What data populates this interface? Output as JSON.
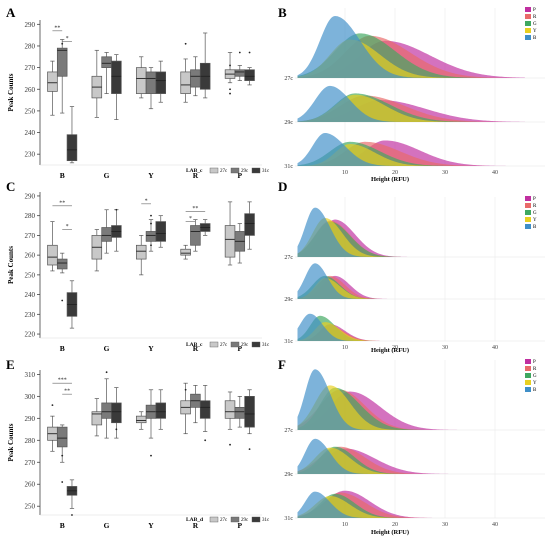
{
  "colors": {
    "box_27c": "#c8c8c8",
    "box_29c": "#7a7a7a",
    "box_31c": "#3a3a3a",
    "P": "#c02fa0",
    "R": "#e96a6a",
    "G": "#3fa860",
    "Y": "#e9d020",
    "B": "#3f8fc8"
  },
  "chart_data": [
    {
      "panel": "A",
      "type": "box",
      "ylabel": "Peak Counts",
      "ylim": [
        225,
        292
      ],
      "yticks": [
        230,
        240,
        250,
        260,
        270,
        280,
        290
      ],
      "categories": [
        "B",
        "G",
        "Y",
        "R",
        "P"
      ],
      "legend_title": "LAB_c",
      "series_names": [
        "27c",
        "29c",
        "31c"
      ],
      "boxes": [
        [
          {
            "min": 248,
            "q1": 259,
            "med": 263,
            "q3": 268,
            "max": 273
          },
          {
            "min": 249,
            "q1": 266,
            "med": 278,
            "q3": 279,
            "max": 283
          },
          {
            "min": 226,
            "q1": 227,
            "med": 232,
            "q3": 239,
            "max": 252
          }
        ],
        [
          {
            "min": 247,
            "q1": 256,
            "med": 261,
            "q3": 266,
            "max": 278
          },
          {
            "min": 258,
            "q1": 270,
            "med": 272,
            "q3": 275,
            "max": 277
          },
          {
            "min": 246,
            "q1": 258,
            "med": 266,
            "q3": 273,
            "max": 276
          }
        ],
        [
          {
            "min": 256,
            "q1": 258,
            "med": 265,
            "q3": 270,
            "max": 275
          },
          {
            "min": 251,
            "q1": 258,
            "med": 265,
            "q3": 268,
            "max": 270
          },
          {
            "min": 254,
            "q1": 258,
            "med": 264,
            "q3": 268,
            "max": 273
          }
        ],
        [
          {
            "min": 254,
            "q1": 258,
            "med": 262,
            "q3": 268,
            "max": 274
          },
          {
            "min": 257,
            "q1": 261,
            "med": 266,
            "q3": 269,
            "max": 275
          },
          {
            "min": 256,
            "q1": 260,
            "med": 266,
            "q3": 272,
            "max": 286
          }
        ],
        [
          {
            "min": 263,
            "q1": 265,
            "med": 267,
            "q3": 269,
            "max": 277
          },
          {
            "min": 264,
            "q1": 266,
            "med": 268,
            "q3": 269,
            "max": 271
          },
          {
            "min": 262,
            "q1": 264,
            "med": 266,
            "q3": 269,
            "max": 270
          }
        ]
      ],
      "outliers": [
        {
          "cat": 0,
          "s": 1,
          "y": 281
        },
        {
          "cat": 3,
          "s": 0,
          "y": 281
        },
        {
          "cat": 4,
          "s": 0,
          "y": 260
        },
        {
          "cat": 4,
          "s": 0,
          "y": 258
        },
        {
          "cat": 4,
          "s": 0,
          "y": 271
        },
        {
          "cat": 4,
          "s": 1,
          "y": 277
        },
        {
          "cat": 4,
          "s": 2,
          "y": 277
        }
      ],
      "brackets": [
        {
          "cat": 0,
          "from": 0,
          "to": 1,
          "y": 287,
          "label": "**"
        },
        {
          "cat": 0,
          "from": 1,
          "to": 2,
          "y": 282,
          "label": "*"
        }
      ]
    },
    {
      "panel": "C",
      "type": "box",
      "ylabel": "Peak Counts",
      "ylim": [
        218,
        292
      ],
      "yticks": [
        220,
        230,
        240,
        250,
        260,
        270,
        280,
        290
      ],
      "categories": [
        "B",
        "G",
        "Y",
        "R",
        "P"
      ],
      "legend_title": "LAB_c",
      "series_names": [
        "27c",
        "29c",
        "31c"
      ],
      "boxes": [
        [
          {
            "min": 252,
            "q1": 255,
            "med": 259,
            "q3": 265,
            "max": 277
          },
          {
            "min": 251,
            "q1": 253,
            "med": 256,
            "q3": 258,
            "max": 261
          },
          {
            "min": 223,
            "q1": 229,
            "med": 235,
            "q3": 241,
            "max": 247
          }
        ],
        [
          {
            "min": 252,
            "q1": 258,
            "med": 264,
            "q3": 270,
            "max": 273
          },
          {
            "min": 261,
            "q1": 267,
            "med": 270,
            "q3": 274,
            "max": 283
          },
          {
            "min": 262,
            "q1": 269,
            "med": 272,
            "q3": 275,
            "max": 283
          }
        ],
        [
          {
            "min": 250,
            "q1": 258,
            "med": 262,
            "q3": 265,
            "max": 270
          },
          {
            "min": 262,
            "q1": 267,
            "med": 270,
            "q3": 272,
            "max": 278
          },
          {
            "min": 264,
            "q1": 267,
            "med": 271,
            "q3": 277,
            "max": 280
          }
        ],
        [
          {
            "min": 258,
            "q1": 260,
            "med": 261,
            "q3": 263,
            "max": 265
          },
          {
            "min": 262,
            "q1": 265,
            "med": 272,
            "q3": 275,
            "max": 278
          },
          {
            "min": 270,
            "q1": 272,
            "med": 274,
            "q3": 276,
            "max": 278
          }
        ],
        [
          {
            "min": 255,
            "q1": 259,
            "med": 268,
            "q3": 275,
            "max": 287
          },
          {
            "min": 256,
            "q1": 262,
            "med": 267,
            "q3": 272,
            "max": 276
          },
          {
            "min": 263,
            "q1": 270,
            "med": 276,
            "q3": 281,
            "max": 287
          }
        ]
      ],
      "outliers": [
        {
          "cat": 0,
          "s": 1,
          "y": 237
        },
        {
          "cat": 1,
          "s": 2,
          "y": 283
        },
        {
          "cat": 2,
          "s": 1,
          "y": 280
        },
        {
          "cat": 2,
          "s": 1,
          "y": 276
        },
        {
          "cat": 2,
          "s": 1,
          "y": 265
        }
      ],
      "brackets": [
        {
          "cat": 0,
          "from": 0,
          "to": 2,
          "y": 285,
          "label": "**"
        },
        {
          "cat": 0,
          "from": 1,
          "to": 2,
          "y": 273,
          "label": "*"
        },
        {
          "cat": 2,
          "from": 0,
          "to": 1,
          "y": 286,
          "label": "*"
        },
        {
          "cat": 3,
          "from": 0,
          "to": 2,
          "y": 282,
          "label": "**"
        },
        {
          "cat": 3,
          "from": 0,
          "to": 1,
          "y": 277,
          "label": "*"
        }
      ]
    },
    {
      "panel": "E",
      "type": "box",
      "ylabel": "Peak Counts",
      "ylim": [
        246,
        312
      ],
      "yticks": [
        250,
        260,
        270,
        280,
        290,
        300,
        310
      ],
      "categories": [
        "B",
        "G",
        "Y",
        "R",
        "P"
      ],
      "legend_title": "LAB_d",
      "series_names": [
        "27c",
        "29c",
        "31c"
      ],
      "boxes": [
        [
          {
            "min": 275,
            "q1": 280,
            "med": 283,
            "q3": 286,
            "max": 291
          },
          {
            "min": 270,
            "q1": 277,
            "med": 281,
            "q3": 286,
            "max": 287
          },
          {
            "min": 249,
            "q1": 255,
            "med": 257,
            "q3": 259,
            "max": 262
          }
        ],
        [
          {
            "min": 282,
            "q1": 287,
            "med": 292,
            "q3": 293,
            "max": 299
          },
          {
            "min": 281,
            "q1": 290,
            "med": 293,
            "q3": 297,
            "max": 308
          },
          {
            "min": 281,
            "q1": 288,
            "med": 293,
            "q3": 297,
            "max": 304
          }
        ],
        [
          {
            "min": 285,
            "q1": 288,
            "med": 289,
            "q3": 291,
            "max": 293
          },
          {
            "min": 281,
            "q1": 290,
            "med": 293,
            "q3": 296,
            "max": 303
          },
          {
            "min": 285,
            "q1": 290,
            "med": 293,
            "q3": 297,
            "max": 303
          }
        ],
        [
          {
            "min": 283,
            "q1": 292,
            "med": 295,
            "q3": 298,
            "max": 306
          },
          {
            "min": 288,
            "q1": 295,
            "med": 298,
            "q3": 301,
            "max": 305
          },
          {
            "min": 284,
            "q1": 290,
            "med": 295,
            "q3": 298,
            "max": 305
          }
        ],
        [
          {
            "min": 285,
            "q1": 290,
            "med": 293,
            "q3": 298,
            "max": 302
          },
          {
            "min": 286,
            "q1": 290,
            "med": 293,
            "q3": 295,
            "max": 300
          },
          {
            "min": 283,
            "q1": 286,
            "med": 292,
            "q3": 300,
            "max": 303
          }
        ]
      ],
      "outliers": [
        {
          "cat": 0,
          "s": 0,
          "y": 296
        },
        {
          "cat": 0,
          "s": 1,
          "y": 273
        },
        {
          "cat": 0,
          "s": 1,
          "y": 261
        },
        {
          "cat": 0,
          "s": 2,
          "y": 246
        },
        {
          "cat": 1,
          "s": 1,
          "y": 311
        },
        {
          "cat": 1,
          "s": 2,
          "y": 285
        },
        {
          "cat": 2,
          "s": 1,
          "y": 273
        },
        {
          "cat": 3,
          "s": 0,
          "y": 303
        },
        {
          "cat": 3,
          "s": 2,
          "y": 280
        },
        {
          "cat": 4,
          "s": 0,
          "y": 278
        },
        {
          "cat": 4,
          "s": 2,
          "y": 276
        }
      ],
      "brackets": [
        {
          "cat": 0,
          "from": 0,
          "to": 2,
          "y": 306,
          "label": "***"
        },
        {
          "cat": 0,
          "from": 1,
          "to": 2,
          "y": 301,
          "label": "**"
        }
      ]
    },
    {
      "panel": "B",
      "type": "area",
      "xlabel": "Height (RFU)",
      "xlim": [
        0,
        50
      ],
      "xticks": [
        10,
        20,
        30,
        40
      ],
      "rows": [
        "27c",
        "29c",
        "31c"
      ],
      "legend": [
        "P",
        "R",
        "G",
        "Y",
        "B"
      ],
      "peaks": {
        "P": [
          {
            "mode": 18,
            "amp": 0.6,
            "wl": 5,
            "wr": 9
          },
          {
            "mode": 17,
            "amp": 0.5,
            "wl": 5,
            "wr": 9
          },
          {
            "mode": 18,
            "amp": 0.58,
            "wl": 4,
            "wr": 7
          }
        ],
        "R": [
          {
            "mode": 15,
            "amp": 0.68,
            "wl": 5,
            "wr": 8
          },
          {
            "mode": 14,
            "amp": 0.6,
            "wl": 5,
            "wr": 8
          },
          {
            "mode": 14,
            "amp": 0.55,
            "wl": 4,
            "wr": 7
          }
        ],
        "G": [
          {
            "mode": 13,
            "amp": 0.72,
            "wl": 5,
            "wr": 7
          },
          {
            "mode": 12,
            "amp": 0.65,
            "wl": 4,
            "wr": 7
          },
          {
            "mode": 11,
            "amp": 0.55,
            "wl": 4,
            "wr": 6
          }
        ],
        "Y": [
          {
            "mode": 11,
            "amp": 0.62,
            "wl": 4,
            "wr": 6
          },
          {
            "mode": 12,
            "amp": 0.62,
            "wl": 4,
            "wr": 6
          },
          {
            "mode": 11,
            "amp": 0.5,
            "wl": 3,
            "wr": 5
          }
        ],
        "B": [
          {
            "mode": 8,
            "amp": 1.0,
            "wl": 3,
            "wr": 5
          },
          {
            "mode": 7,
            "amp": 0.82,
            "wl": 3,
            "wr": 4
          },
          {
            "mode": 6,
            "amp": 0.75,
            "wl": 2.5,
            "wr": 4
          }
        ]
      }
    },
    {
      "panel": "D",
      "type": "area",
      "xlabel": "Height (RFU)",
      "xlim": [
        0,
        50
      ],
      "xticks": [
        10,
        20,
        30,
        40
      ],
      "rows": [
        "27c",
        "29c",
        "31c"
      ],
      "legend": [
        "P",
        "R",
        "G",
        "Y",
        "B"
      ],
      "peaks": {
        "P": [
          {
            "mode": 8,
            "amp": 0.72,
            "wl": 3,
            "wr": 4
          },
          {
            "mode": 8,
            "amp": 0.55,
            "wl": 2.5,
            "wr": 3
          },
          {
            "mode": 7,
            "amp": 0.4,
            "wl": 2,
            "wr": 3
          }
        ],
        "R": [
          {
            "mode": 7,
            "amp": 0.7,
            "wl": 3,
            "wr": 4
          },
          {
            "mode": 7,
            "amp": 0.55,
            "wl": 2.5,
            "wr": 3
          },
          {
            "mode": 7,
            "amp": 0.35,
            "wl": 2,
            "wr": 3
          }
        ],
        "G": [
          {
            "mode": 7,
            "amp": 0.68,
            "wl": 3,
            "wr": 4
          },
          {
            "mode": 6,
            "amp": 0.55,
            "wl": 2.5,
            "wr": 3
          },
          {
            "mode": 5,
            "amp": 0.6,
            "wl": 2,
            "wr": 3
          }
        ],
        "Y": [
          {
            "mode": 6,
            "amp": 0.75,
            "wl": 2.5,
            "wr": 3.5
          },
          {
            "mode": 6,
            "amp": 0.5,
            "wl": 2,
            "wr": 3
          },
          {
            "mode": 6,
            "amp": 0.45,
            "wl": 2,
            "wr": 3
          }
        ],
        "B": [
          {
            "mode": 4,
            "amp": 0.95,
            "wl": 2,
            "wr": 3
          },
          {
            "mode": 4,
            "amp": 0.85,
            "wl": 2,
            "wr": 2.5
          },
          {
            "mode": 3,
            "amp": 0.65,
            "wl": 2,
            "wr": 2.5
          }
        ]
      }
    },
    {
      "panel": "F",
      "type": "area",
      "xlabel": "Height (RFU)",
      "xlim": [
        0,
        50
      ],
      "xticks": [
        10,
        20,
        30,
        40
      ],
      "rows": [
        "27c",
        "29c",
        "31c"
      ],
      "legend": [
        "P",
        "R",
        "G",
        "Y",
        "B"
      ],
      "peaks": {
        "P": [
          {
            "mode": 11,
            "amp": 0.62,
            "wl": 4,
            "wr": 6
          },
          {
            "mode": 10,
            "amp": 0.58,
            "wl": 4,
            "wr": 6
          },
          {
            "mode": 10,
            "amp": 0.62,
            "wl": 4,
            "wr": 5
          }
        ],
        "R": [
          {
            "mode": 9,
            "amp": 0.65,
            "wl": 4,
            "wr": 5
          },
          {
            "mode": 9,
            "amp": 0.62,
            "wl": 4,
            "wr": 5
          },
          {
            "mode": 9,
            "amp": 0.58,
            "wl": 3,
            "wr": 5
          }
        ],
        "G": [
          {
            "mode": 8,
            "amp": 0.68,
            "wl": 3,
            "wr": 5
          },
          {
            "mode": 8,
            "amp": 0.62,
            "wl": 3,
            "wr": 4
          },
          {
            "mode": 8,
            "amp": 0.55,
            "wl": 3,
            "wr": 4
          }
        ],
        "Y": [
          {
            "mode": 7,
            "amp": 0.72,
            "wl": 3,
            "wr": 4
          },
          {
            "mode": 7,
            "amp": 0.6,
            "wl": 3,
            "wr": 4
          },
          {
            "mode": 7,
            "amp": 0.5,
            "wl": 3,
            "wr": 4
          }
        ],
        "B": [
          {
            "mode": 4,
            "amp": 0.98,
            "wl": 2,
            "wr": 3
          },
          {
            "mode": 4,
            "amp": 0.8,
            "wl": 2,
            "wr": 3
          },
          {
            "mode": 4,
            "amp": 0.6,
            "wl": 2,
            "wr": 3
          }
        ]
      }
    }
  ]
}
